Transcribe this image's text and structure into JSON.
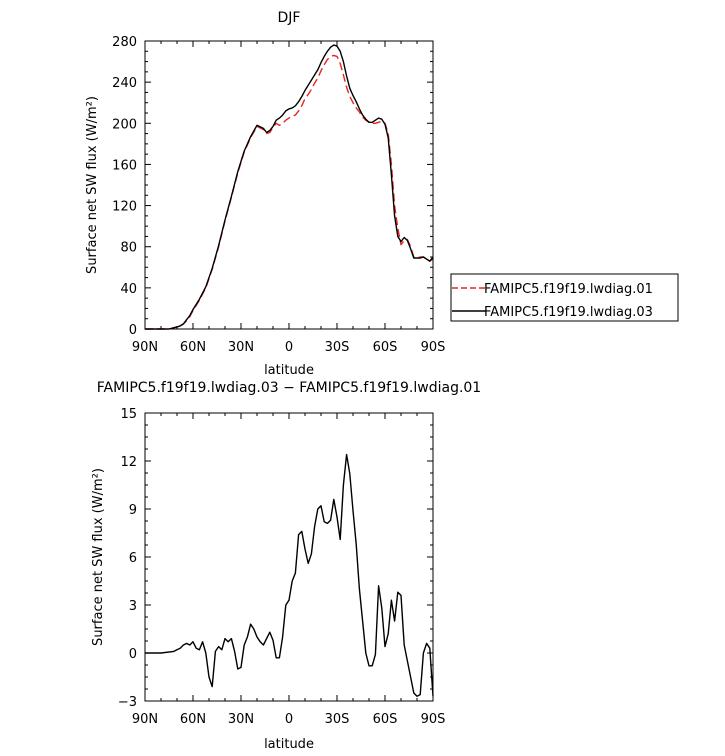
{
  "chart_data": [
    {
      "type": "line",
      "title": "DJF",
      "xlabel": "latitude",
      "ylabel": "Surface net SW flux (W/m²)",
      "xlim": [
        90,
        -90
      ],
      "ylim": [
        0,
        280
      ],
      "x_ticks": [
        90,
        60,
        30,
        0,
        -30,
        -60,
        -90
      ],
      "x_tick_labels": [
        "90N",
        "60N",
        "30N",
        "0",
        "30S",
        "60S",
        "90S"
      ],
      "y_ticks": [
        0,
        40,
        80,
        120,
        160,
        200,
        240,
        280
      ],
      "y_tick_labels": [
        "0",
        "40",
        "80",
        "120",
        "160",
        "200",
        "240",
        "280"
      ],
      "legend_position": "right",
      "series": [
        {
          "name": "FAMIPC5.f19f19.lwdiag.01",
          "color": "#e8231f",
          "dash": "dashed",
          "x": [
            90,
            80,
            75,
            70,
            68,
            66,
            64,
            62,
            60,
            56,
            52,
            48,
            44,
            40,
            36,
            32,
            28,
            24,
            20,
            16,
            14,
            12,
            10,
            8,
            6,
            4,
            2,
            0,
            -2,
            -4,
            -6,
            -8,
            -10,
            -12,
            -14,
            -16,
            -18,
            -20,
            -22,
            -24,
            -26,
            -28,
            -30,
            -32,
            -34,
            -36,
            -38,
            -40,
            -42,
            -44,
            -46,
            -48,
            -50,
            -52,
            -54,
            -56,
            -58,
            -60,
            -62,
            -64,
            -66,
            -68,
            -70,
            -72,
            -74,
            -76,
            -78,
            -80,
            -82,
            -84,
            -86,
            -88,
            -90
          ],
          "y": [
            0,
            0,
            0,
            2,
            3,
            5,
            8,
            12,
            18,
            28,
            40,
            58,
            80,
            105,
            128,
            152,
            172,
            186,
            197,
            194,
            190,
            191,
            196,
            200,
            198,
            200,
            203,
            205,
            207,
            208,
            212,
            217,
            224,
            228,
            233,
            239,
            244,
            251,
            257,
            262,
            265,
            266,
            265,
            258,
            247,
            235,
            226,
            220,
            215,
            211,
            206,
            203,
            201,
            200,
            200,
            201,
            202,
            200,
            190,
            160,
            120,
            98,
            82,
            86,
            87,
            80,
            70,
            69,
            70,
            70,
            68,
            66,
            68
          ]
        },
        {
          "name": "FAMIPC5.f19f19.lwdiag.03",
          "color": "#000000",
          "dash": "solid",
          "x": [
            90,
            80,
            75,
            70,
            68,
            66,
            64,
            62,
            60,
            56,
            52,
            48,
            44,
            40,
            36,
            32,
            28,
            24,
            20,
            16,
            14,
            12,
            10,
            8,
            6,
            4,
            2,
            0,
            -2,
            -4,
            -6,
            -8,
            -10,
            -12,
            -14,
            -16,
            -18,
            -20,
            -22,
            -24,
            -26,
            -28,
            -30,
            -32,
            -34,
            -36,
            -38,
            -40,
            -42,
            -44,
            -46,
            -48,
            -50,
            -52,
            -54,
            -56,
            -58,
            -60,
            -62,
            -64,
            -66,
            -68,
            -70,
            -72,
            -74,
            -76,
            -78,
            -80,
            -82,
            -84,
            -86,
            -88,
            -90
          ],
          "y": [
            0,
            0,
            0,
            2,
            3,
            5,
            9,
            13,
            19,
            29,
            41,
            59,
            81,
            106,
            129,
            153,
            173,
            187,
            198,
            195,
            191,
            193,
            197,
            203,
            205,
            208,
            212,
            214,
            215,
            217,
            221,
            226,
            232,
            237,
            242,
            247,
            252,
            259,
            265,
            270,
            274,
            276,
            275,
            270,
            260,
            246,
            234,
            227,
            221,
            214,
            208,
            204,
            201,
            201,
            203,
            205,
            204,
            199,
            186,
            150,
            110,
            90,
            85,
            89,
            86,
            78,
            69,
            69,
            69,
            70,
            68,
            66,
            70
          ]
        }
      ]
    },
    {
      "type": "line",
      "title": "FAMIPC5.f19f19.lwdiag.03 − FAMIPC5.f19f19.lwdiag.01",
      "xlabel": "latitude",
      "ylabel": "Surface net SW flux (W/m²)",
      "xlim": [
        90,
        -90
      ],
      "ylim": [
        -3,
        15
      ],
      "x_ticks": [
        90,
        60,
        30,
        0,
        -30,
        -60,
        -90
      ],
      "x_tick_labels": [
        "90N",
        "60N",
        "30N",
        "0",
        "30S",
        "60S",
        "90S"
      ],
      "y_ticks": [
        -3,
        0,
        3,
        6,
        9,
        12,
        15
      ],
      "y_tick_labels": [
        "−3",
        "0",
        "3",
        "6",
        "9",
        "12",
        "15"
      ],
      "series": [
        {
          "color": "#000000",
          "dash": "solid",
          "x": [
            90,
            80,
            72,
            70,
            68,
            66,
            64,
            62,
            60,
            58,
            56,
            54,
            52,
            50,
            48,
            46,
            44,
            42,
            40,
            38,
            36,
            34,
            32,
            30,
            28,
            26,
            24,
            22,
            20,
            18,
            16,
            14,
            12,
            10,
            8,
            6,
            4,
            2,
            0,
            -2,
            -4,
            -6,
            -8,
            -10,
            -12,
            -14,
            -16,
            -18,
            -20,
            -22,
            -24,
            -26,
            -28,
            -30,
            -32,
            -34,
            -36,
            -38,
            -40,
            -42,
            -44,
            -46,
            -48,
            -50,
            -52,
            -54,
            -56,
            -58,
            -60,
            -62,
            -64,
            -66,
            -68,
            -70,
            -72,
            -74,
            -76,
            -78,
            -80,
            -82,
            -84,
            -86,
            -88,
            -90
          ],
          "y": [
            0,
            0,
            0.1,
            0.2,
            0.3,
            0.5,
            0.6,
            0.5,
            0.7,
            0.3,
            0.2,
            0.7,
            0,
            -1.5,
            -2.1,
            0.1,
            0.4,
            0.2,
            0.9,
            0.7,
            0.9,
            0.1,
            -1.0,
            -0.9,
            0.5,
            1.0,
            1.8,
            1.5,
            1.0,
            0.7,
            0.5,
            0.9,
            1.3,
            0.8,
            -0.3,
            -0.3,
            1.0,
            3.0,
            3.3,
            4.5,
            5.0,
            7.4,
            7.6,
            6.5,
            5.6,
            6.2,
            7.9,
            9.0,
            9.2,
            8.2,
            8.1,
            8.3,
            9.6,
            8.5,
            7.1,
            10.5,
            12.4,
            11.2,
            8.9,
            6.8,
            4.0,
            2.0,
            0,
            -0.8,
            -0.8,
            -0.1,
            4.2,
            2.8,
            0.4,
            1.2,
            3.3,
            2.0,
            3.8,
            3.6,
            0.5,
            -0.5,
            -1.5,
            -2.5,
            -2.7,
            -2.6,
            0,
            0.6,
            0.3,
            -2.7
          ]
        }
      ]
    }
  ]
}
